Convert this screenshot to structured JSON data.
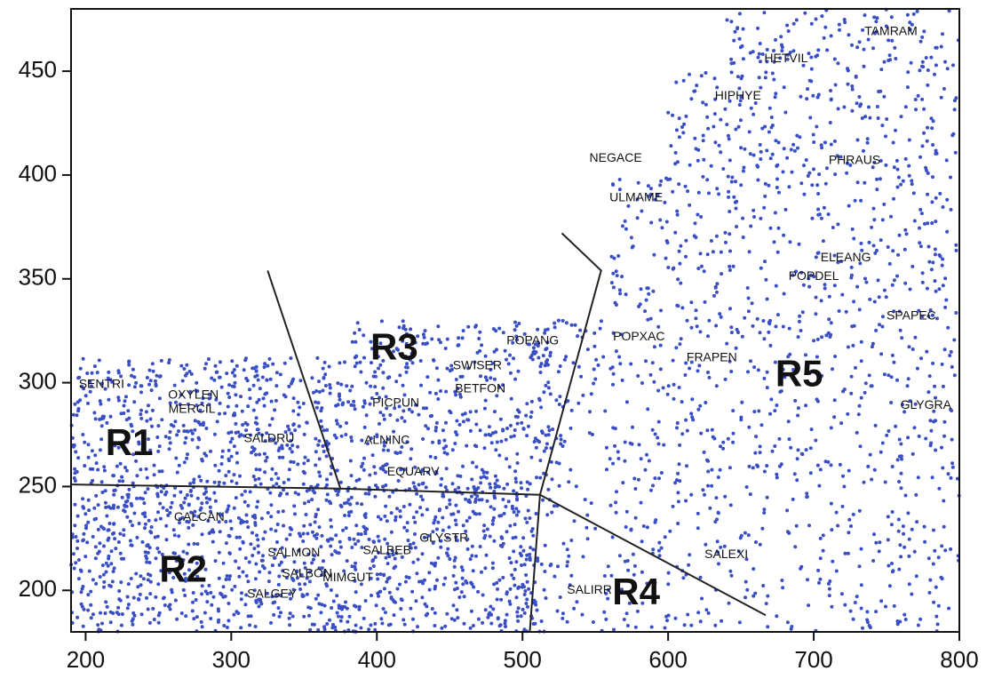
{
  "chart_data": {
    "type": "scatter",
    "title": "",
    "xlabel": "",
    "ylabel": "",
    "xlim": [
      190,
      800
    ],
    "ylim": [
      180,
      480
    ],
    "x_ticks": [
      200,
      300,
      400,
      500,
      600,
      700,
      800
    ],
    "y_ticks": [
      200,
      250,
      300,
      350,
      400,
      450
    ],
    "point_color": "#3a4fc4",
    "point_density": [
      {
        "xmin": 190,
        "xmax": 380,
        "ymin": 250,
        "ymax": 312,
        "count": 520
      },
      {
        "xmin": 380,
        "xmax": 520,
        "ymin": 248,
        "ymax": 330,
        "count": 420
      },
      {
        "xmin": 190,
        "xmax": 510,
        "ymin": 180,
        "ymax": 250,
        "count": 1100
      },
      {
        "xmin": 505,
        "xmax": 800,
        "ymin": 180,
        "ymax": 250,
        "count": 320
      },
      {
        "xmin": 515,
        "xmax": 800,
        "ymin": 250,
        "ymax": 330,
        "count": 420
      },
      {
        "xmin": 560,
        "xmax": 800,
        "ymin": 330,
        "ymax": 400,
        "count": 330
      },
      {
        "xmin": 600,
        "xmax": 800,
        "ymin": 400,
        "ymax": 450,
        "count": 220
      },
      {
        "xmin": 640,
        "xmax": 800,
        "ymin": 450,
        "ymax": 480,
        "count": 120
      }
    ],
    "boundaries": [
      {
        "name": "r1-r2",
        "points": [
          [
            190,
            251
          ],
          [
            375,
            249
          ],
          [
            512,
            246
          ]
        ]
      },
      {
        "name": "r1-r3",
        "points": [
          [
            325,
            354
          ],
          [
            375,
            249
          ]
        ]
      },
      {
        "name": "r3-r5",
        "points": [
          [
            512,
            246
          ],
          [
            554,
            354
          ],
          [
            527,
            372
          ]
        ]
      },
      {
        "name": "r2-r4",
        "points": [
          [
            512,
            246
          ],
          [
            505,
            180
          ]
        ]
      },
      {
        "name": "r4-r5",
        "points": [
          [
            512,
            246
          ],
          [
            667,
            188
          ]
        ]
      }
    ],
    "regions": [
      {
        "label": "R1",
        "x": 230,
        "y": 270
      },
      {
        "label": "R2",
        "x": 267,
        "y": 209
      },
      {
        "label": "R3",
        "x": 412,
        "y": 316
      },
      {
        "label": "R4",
        "x": 578,
        "y": 198
      },
      {
        "label": "R5",
        "x": 690,
        "y": 303
      }
    ],
    "species": [
      {
        "label": "SENTRI",
        "x": 211,
        "y": 299
      },
      {
        "label": "OXYLEN",
        "x": 274,
        "y": 294
      },
      {
        "label": "MERCIL",
        "x": 273,
        "y": 287
      },
      {
        "label": "SALDRU",
        "x": 326,
        "y": 273
      },
      {
        "label": "CALCAN",
        "x": 278,
        "y": 235
      },
      {
        "label": "SALMON",
        "x": 343,
        "y": 218
      },
      {
        "label": "SALBON",
        "x": 352,
        "y": 208
      },
      {
        "label": "MIMGUT",
        "x": 380,
        "y": 206
      },
      {
        "label": "SALGEY",
        "x": 328,
        "y": 198
      },
      {
        "label": "SALBEB",
        "x": 407,
        "y": 219
      },
      {
        "label": "GLYSTR",
        "x": 446,
        "y": 225
      },
      {
        "label": "PICPUN",
        "x": 413,
        "y": 290
      },
      {
        "label": "ALNINC",
        "x": 407,
        "y": 272
      },
      {
        "label": "EQUARV",
        "x": 425,
        "y": 257
      },
      {
        "label": "SWISER",
        "x": 469,
        "y": 308
      },
      {
        "label": "BETFON",
        "x": 471,
        "y": 297
      },
      {
        "label": "POPANG",
        "x": 507,
        "y": 320
      },
      {
        "label": "NEGACE",
        "x": 564,
        "y": 408
      },
      {
        "label": "ULMAME",
        "x": 578,
        "y": 389
      },
      {
        "label": "POPXAC",
        "x": 580,
        "y": 322
      },
      {
        "label": "FRAPEN",
        "x": 630,
        "y": 312
      },
      {
        "label": "SALEXI",
        "x": 640,
        "y": 217
      },
      {
        "label": "SALIRR",
        "x": 546,
        "y": 200
      },
      {
        "label": "HIPHYE",
        "x": 648,
        "y": 438
      },
      {
        "label": "HETVIL",
        "x": 681,
        "y": 456
      },
      {
        "label": "TAMRAM",
        "x": 753,
        "y": 469
      },
      {
        "label": "PHRAUS",
        "x": 728,
        "y": 407
      },
      {
        "label": "ELEANG",
        "x": 722,
        "y": 360
      },
      {
        "label": "POPDEL",
        "x": 700,
        "y": 351
      },
      {
        "label": "SPAPEC",
        "x": 767,
        "y": 332
      },
      {
        "label": "GLYGRA",
        "x": 777,
        "y": 289
      }
    ]
  }
}
